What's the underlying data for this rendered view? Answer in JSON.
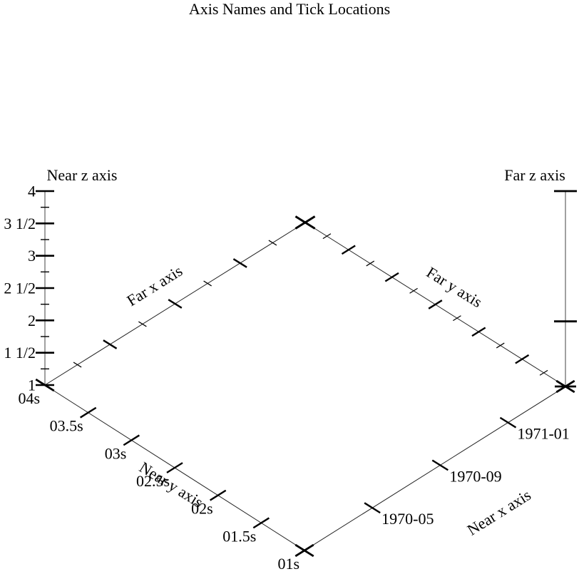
{
  "page": {
    "background": "#ffffff",
    "text_color": "#000000",
    "z_axis_line_color": "#888888",
    "edge_color": "#222222",
    "tick_color": "#000000"
  },
  "chart_data": {
    "type": "scatter",
    "projection": "3d",
    "title": "Axis Names and Tick Locations",
    "series": [],
    "note": "empty 3D axes box demonstrating axis name placement and tick locations",
    "axes": {
      "near_z": {
        "name": "Near z axis",
        "tick_labels": [
          "4",
          "3 1/2",
          "3",
          "2 1/2",
          "2",
          "1 1/2",
          "1"
        ],
        "zlim": [
          1,
          4
        ]
      },
      "far_z": {
        "name": "Far z axis",
        "tick_values": [
          4,
          2
        ]
      },
      "near_y": {
        "name": "Near y axis",
        "tick_labels": [
          "04s",
          "03.5s",
          "03s",
          "02.5s",
          "02s",
          "01.5s",
          "01s"
        ]
      },
      "far_y": {
        "name": "Far y axis",
        "tick_labels": []
      },
      "near_x": {
        "name": "Near x axis",
        "tick_labels": [
          "1970-05",
          "1970-09",
          "1971-01"
        ]
      },
      "far_x": {
        "name": "Far x axis",
        "tick_labels": []
      }
    }
  }
}
